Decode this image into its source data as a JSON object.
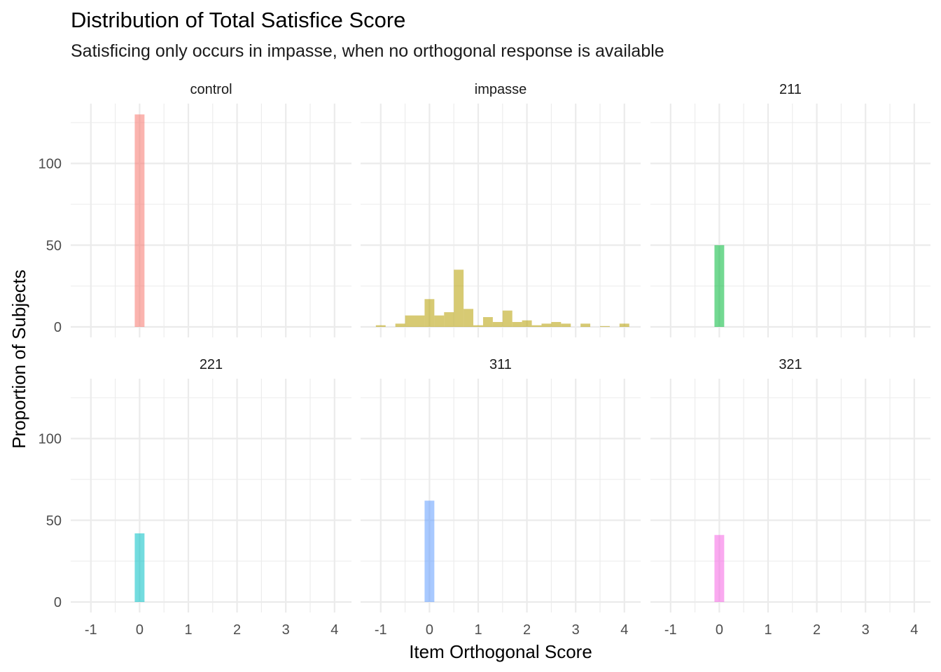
{
  "chart_data": {
    "type": "bar",
    "title": "Distribution of Total Satisfice Score",
    "subtitle": "Satisficing only occurs in impasse, when no orthogonal response is available",
    "xlabel": "Item Orthogonal Score",
    "ylabel": "Proportion of Subjects",
    "xlim": [
      -1.15,
      4.3
    ],
    "ylim": [
      0,
      135
    ],
    "x_ticks": [
      "-1",
      "0",
      "1",
      "2",
      "3",
      "4"
    ],
    "y_ticks": [
      "0",
      "50",
      "100"
    ],
    "grid": true,
    "legend": "none",
    "bin_width": 0.2,
    "panels": [
      {
        "name": "control",
        "color": "#F8766D",
        "bins": [
          {
            "x": 0,
            "y": 130
          }
        ]
      },
      {
        "name": "impasse",
        "color": "#B79F00",
        "bins": [
          {
            "x": -1.0,
            "y": 1
          },
          {
            "x": -0.6,
            "y": 2
          },
          {
            "x": -0.4,
            "y": 7
          },
          {
            "x": -0.2,
            "y": 7
          },
          {
            "x": 0.0,
            "y": 17
          },
          {
            "x": 0.2,
            "y": 7
          },
          {
            "x": 0.4,
            "y": 9
          },
          {
            "x": 0.6,
            "y": 35
          },
          {
            "x": 0.8,
            "y": 11
          },
          {
            "x": 1.0,
            "y": 1
          },
          {
            "x": 1.2,
            "y": 6
          },
          {
            "x": 1.4,
            "y": 3
          },
          {
            "x": 1.6,
            "y": 10
          },
          {
            "x": 1.8,
            "y": 3
          },
          {
            "x": 2.0,
            "y": 4
          },
          {
            "x": 2.2,
            "y": 1
          },
          {
            "x": 2.4,
            "y": 2
          },
          {
            "x": 2.6,
            "y": 3
          },
          {
            "x": 2.8,
            "y": 2
          },
          {
            "x": 3.2,
            "y": 2
          },
          {
            "x": 3.6,
            "y": 0.5
          },
          {
            "x": 4.0,
            "y": 2
          }
        ]
      },
      {
        "name": "211",
        "color": "#00BA38",
        "bins": [
          {
            "x": 0,
            "y": 50
          }
        ]
      },
      {
        "name": "221",
        "color": "#00BFC4",
        "bins": [
          {
            "x": 0,
            "y": 42
          }
        ]
      },
      {
        "name": "311",
        "color": "#619CFF",
        "bins": [
          {
            "x": 0,
            "y": 62
          }
        ]
      },
      {
        "name": "321",
        "color": "#F564E3",
        "bins": [
          {
            "x": 0,
            "y": 41
          }
        ]
      }
    ]
  }
}
